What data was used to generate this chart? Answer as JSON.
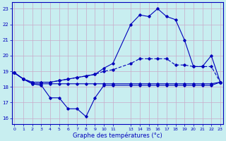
{
  "title": "Graphe des températures (°c)",
  "bg_color": "#c8eef0",
  "line_color": "#0000bb",
  "grid_color": "#b8c8d8",
  "xlim": [
    -0.3,
    23.3
  ],
  "ylim": [
    15.6,
    23.4
  ],
  "yticks": [
    16,
    17,
    18,
    19,
    20,
    21,
    22,
    23
  ],
  "xticks": [
    0,
    1,
    2,
    3,
    4,
    5,
    6,
    7,
    8,
    9,
    10,
    11,
    13,
    14,
    15,
    16,
    17,
    18,
    19,
    20,
    21,
    22,
    23
  ],
  "s1_x": [
    0,
    1,
    2,
    3,
    4,
    5,
    6,
    7,
    8,
    9,
    10,
    11,
    13,
    14,
    15,
    16,
    17,
    18,
    19,
    20,
    21,
    22,
    23
  ],
  "s1_y": [
    18.9,
    18.5,
    18.2,
    18.1,
    17.3,
    17.3,
    16.6,
    16.6,
    16.1,
    17.3,
    18.1,
    18.1,
    18.1,
    18.1,
    18.1,
    18.1,
    18.1,
    18.1,
    18.1,
    18.1,
    18.1,
    18.1,
    18.3
  ],
  "s2_x": [
    0,
    1,
    2,
    3,
    4,
    5,
    6,
    7,
    8,
    9,
    10,
    11,
    13,
    14,
    15,
    16,
    17,
    18,
    19,
    20,
    21,
    22,
    23
  ],
  "s2_y": [
    18.9,
    18.5,
    18.2,
    18.2,
    18.2,
    18.2,
    18.2,
    18.2,
    18.2,
    18.2,
    18.2,
    18.2,
    18.2,
    18.2,
    18.2,
    18.2,
    18.2,
    18.2,
    18.2,
    18.2,
    18.2,
    18.2,
    18.3
  ],
  "s3_x": [
    0,
    1,
    2,
    3,
    4,
    5,
    6,
    7,
    8,
    9,
    10,
    11,
    13,
    14,
    15,
    16,
    17,
    18,
    19,
    20,
    21,
    22,
    23
  ],
  "s3_y": [
    18.9,
    18.5,
    18.3,
    18.3,
    18.3,
    18.4,
    18.5,
    18.6,
    18.7,
    18.8,
    19.0,
    19.1,
    19.5,
    19.8,
    19.8,
    19.8,
    19.8,
    19.4,
    19.4,
    19.3,
    19.3,
    19.3,
    18.3
  ],
  "s4_x": [
    0,
    1,
    2,
    3,
    4,
    5,
    6,
    7,
    8,
    9,
    10,
    11,
    13,
    14,
    15,
    16,
    17,
    18,
    19,
    20,
    21,
    22,
    23
  ],
  "s4_y": [
    18.9,
    18.5,
    18.3,
    18.3,
    18.3,
    18.4,
    18.5,
    18.6,
    18.7,
    18.8,
    19.2,
    19.5,
    22.0,
    22.6,
    22.5,
    23.0,
    22.5,
    22.3,
    21.0,
    19.3,
    19.3,
    20.0,
    18.3
  ]
}
